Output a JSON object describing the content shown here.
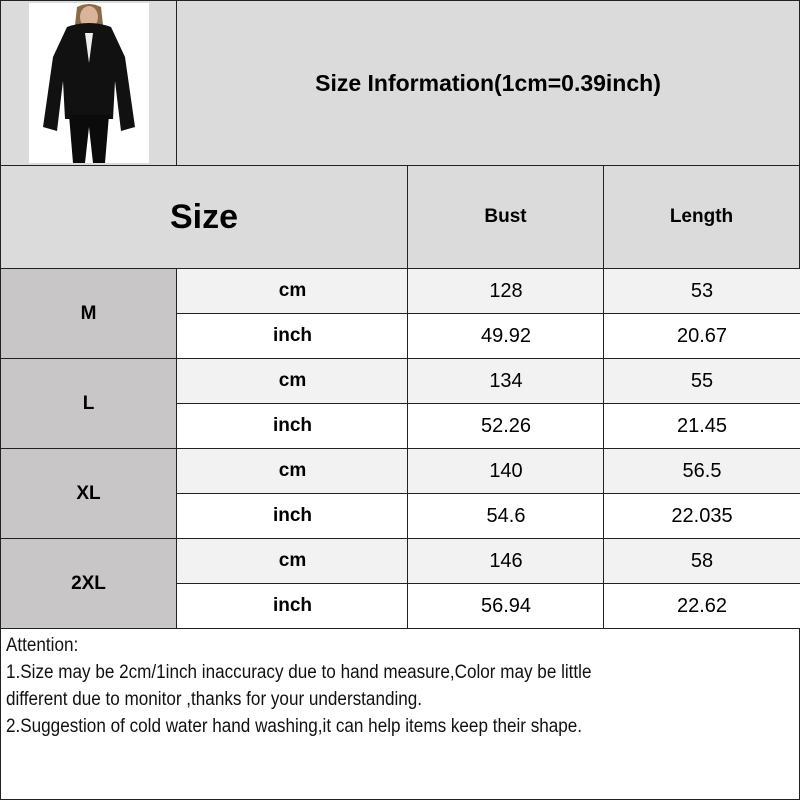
{
  "title": "Size Information(1cm=0.39inch)",
  "headers": {
    "size": "Size",
    "bust": "Bust",
    "length": "Length"
  },
  "units": {
    "cm": "cm",
    "inch": "inch"
  },
  "rows": [
    {
      "size": "M",
      "cm": {
        "bust": "128",
        "length": "53"
      },
      "inch": {
        "bust": "49.92",
        "length": "20.67"
      }
    },
    {
      "size": "L",
      "cm": {
        "bust": "134",
        "length": "55"
      },
      "inch": {
        "bust": "52.26",
        "length": "21.45"
      }
    },
    {
      "size": "XL",
      "cm": {
        "bust": "140",
        "length": "56.5"
      },
      "inch": {
        "bust": "54.6",
        "length": "22.035"
      }
    },
    {
      "size": "2XL",
      "cm": {
        "bust": "146",
        "length": "58"
      },
      "inch": {
        "bust": "56.94",
        "length": "22.62"
      }
    }
  ],
  "attention": {
    "heading": "Attention:",
    "line1": "1.Size may be 2cm/1inch inaccuracy due to hand measure,Color may be little",
    "line1b": "different due to monitor ,thanks for your understanding.",
    "line2": "2.Suggestion of cold water hand washing,it can help items keep their shape."
  },
  "colors": {
    "header_bg": "#dcdbdc",
    "size_bg": "#c9c6c7",
    "cm_row_bg": "#f2f2f2",
    "inch_row_bg": "#ffffff"
  }
}
